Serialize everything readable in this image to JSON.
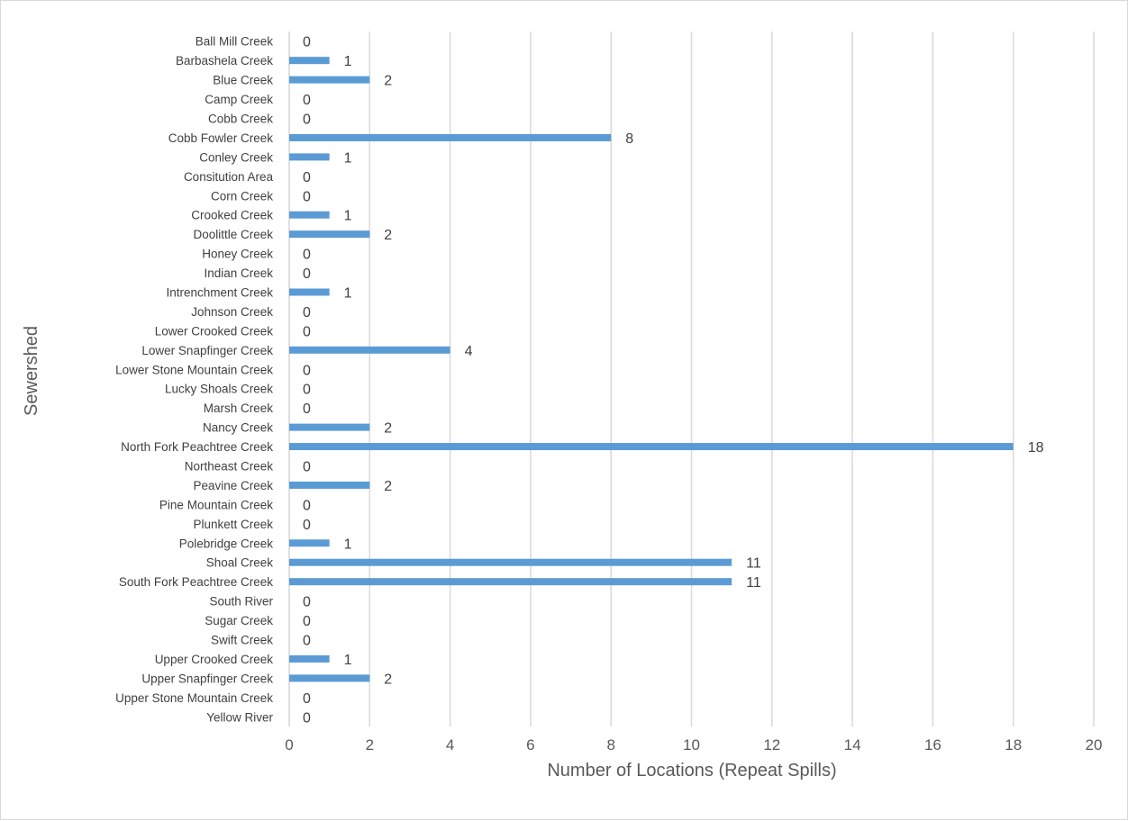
{
  "chart_data": {
    "type": "bar",
    "orientation": "horizontal",
    "xlabel": "Number of Locations (Repeat Spills)",
    "ylabel": "Sewershed",
    "xlim": [
      0,
      20
    ],
    "xticks": [
      "0",
      "2",
      "4",
      "6",
      "8",
      "10",
      "12",
      "14",
      "16",
      "18",
      "20"
    ],
    "grid": true,
    "bar_color": "#5b9bd5",
    "categories": [
      "Ball Mill Creek",
      "Barbashela Creek",
      "Blue Creek",
      "Camp Creek",
      "Cobb Creek",
      "Cobb Fowler Creek",
      "Conley Creek",
      "Consitution Area",
      "Corn Creek",
      "Crooked Creek",
      "Doolittle Creek",
      "Honey Creek",
      "Indian Creek",
      "Intrenchment Creek",
      "Johnson Creek",
      "Lower Crooked Creek",
      "Lower Snapfinger Creek",
      "Lower Stone Mountain Creek",
      "Lucky Shoals Creek",
      "Marsh Creek",
      "Nancy Creek",
      "North Fork Peachtree Creek",
      "Northeast Creek",
      "Peavine Creek",
      "Pine Mountain Creek",
      "Plunkett Creek",
      "Polebridge Creek",
      "Shoal Creek",
      "South Fork Peachtree Creek",
      "South River",
      "Sugar Creek",
      "Swift Creek",
      "Upper Crooked Creek",
      "Upper Snapfinger Creek",
      "Upper Stone Mountain Creek",
      "Yellow River"
    ],
    "values": [
      0,
      1,
      2,
      0,
      0,
      8,
      1,
      0,
      0,
      1,
      2,
      0,
      0,
      1,
      0,
      0,
      4,
      0,
      0,
      0,
      2,
      18,
      0,
      2,
      0,
      0,
      1,
      11,
      11,
      0,
      0,
      0,
      1,
      2,
      0,
      0
    ]
  }
}
